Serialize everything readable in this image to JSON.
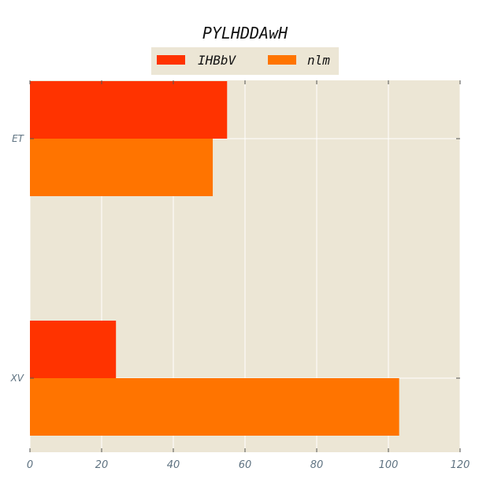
{
  "chart_data": {
    "type": "bar",
    "orientation": "horizontal",
    "title": "PYLHDDAwH",
    "xlabel": "",
    "ylabel": "",
    "categories": [
      "ET",
      "XV"
    ],
    "series": [
      {
        "name": "IHBbV",
        "values": [
          55,
          24
        ],
        "color": "#ff3300"
      },
      {
        "name": "nlm",
        "values": [
          51,
          103
        ],
        "color": "#ff7400"
      }
    ],
    "xlim": [
      0,
      120
    ],
    "xticks": [
      0,
      20,
      40,
      60,
      80,
      100,
      120
    ],
    "grid": true,
    "legend_position": "top-center",
    "plot_background": "#ece6d5",
    "grid_color": "#ffffff"
  }
}
